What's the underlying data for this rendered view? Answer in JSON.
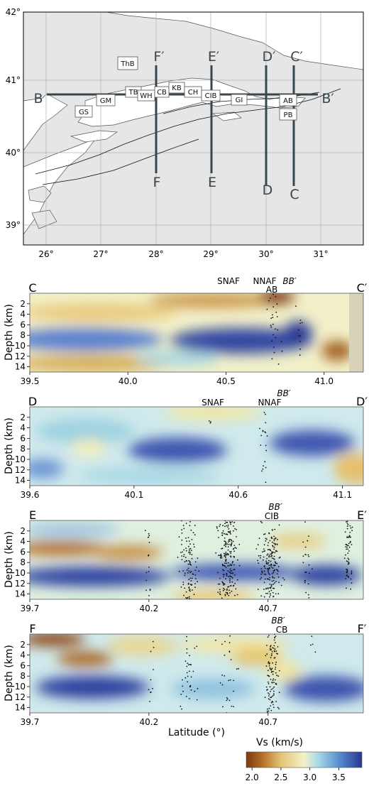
{
  "colors": {
    "low": "#8b4513",
    "mid": "#f2f0c8",
    "high": "#2e3f9e",
    "land": "#e6e6e6",
    "sea": "#ffffff",
    "profile_line": "#37474f"
  },
  "map": {
    "x_ticks": [
      "26°",
      "27°",
      "28°",
      "29°",
      "30°",
      "31°"
    ],
    "y_ticks": [
      "42°",
      "41°",
      "40°",
      "39°"
    ],
    "profile_labels": {
      "B": "B",
      "B_prime": "B′",
      "C": "C",
      "C_prime": "C′",
      "D": "D",
      "D_prime": "D′",
      "E": "E",
      "E_prime": "E′",
      "F": "F",
      "F_prime": "F′"
    },
    "region_codes": [
      "ThB",
      "GM",
      "GS",
      "TB",
      "WH",
      "CB",
      "KB",
      "CH",
      "CIB",
      "GI",
      "AB",
      "PB"
    ]
  },
  "chart_data": [
    {
      "type": "heatmap",
      "section": "C-C′",
      "start_label": "C",
      "end_label": "C′",
      "x_ticks": [
        "39.5",
        "40.0",
        "40.5",
        "41.0"
      ],
      "xlim": [
        39.5,
        41.2
      ],
      "ylabel": "Depth (km)",
      "ylim": [
        15,
        0
      ],
      "y_ticks": [
        "2",
        "4",
        "6",
        "8",
        "10",
        "12",
        "14"
      ],
      "annotations": [
        "SNAF",
        "NNAF",
        "AB",
        "BB′"
      ]
    },
    {
      "type": "heatmap",
      "section": "D-D′",
      "start_label": "D",
      "end_label": "D′",
      "x_ticks": [
        "39.6",
        "40.1",
        "40.6",
        "41.1"
      ],
      "xlim": [
        39.6,
        41.2
      ],
      "ylabel": "Depth (km)",
      "ylim": [
        15,
        0
      ],
      "y_ticks": [
        "2",
        "4",
        "6",
        "8",
        "10",
        "12",
        "14"
      ],
      "annotations": [
        "SNAF",
        "NNAF",
        "BB′"
      ]
    },
    {
      "type": "heatmap",
      "section": "E-E′",
      "start_label": "E",
      "end_label": "E′",
      "x_ticks": [
        "39.7",
        "40.2",
        "40.7"
      ],
      "xlim": [
        39.7,
        41.1
      ],
      "ylabel": "Depth (km)",
      "ylim": [
        15,
        0
      ],
      "y_ticks": [
        "2",
        "4",
        "6",
        "8",
        "10",
        "12",
        "14"
      ],
      "annotations": [
        "CIB",
        "BB′"
      ]
    },
    {
      "type": "heatmap",
      "section": "F-F′",
      "start_label": "F",
      "end_label": "F′",
      "x_ticks": [
        "39.7",
        "40.2",
        "40.7"
      ],
      "xlim": [
        39.7,
        41.1
      ],
      "xlabel": "Latitude (°)",
      "ylabel": "Depth (km)",
      "ylim": [
        15,
        0
      ],
      "y_ticks": [
        "2",
        "4",
        "6",
        "8",
        "10",
        "12",
        "14"
      ],
      "annotations": [
        "CB",
        "BB′"
      ]
    }
  ],
  "colorbar": {
    "label": "Vs (km/s)",
    "ticks": [
      "2.0",
      "2.5",
      "3.0",
      "3.5"
    ],
    "range": [
      1.9,
      3.9
    ]
  }
}
